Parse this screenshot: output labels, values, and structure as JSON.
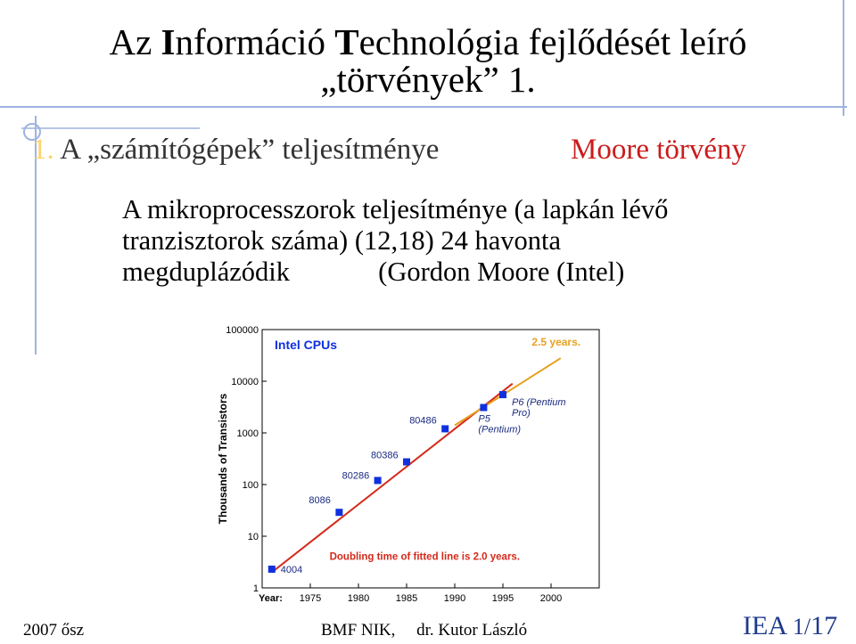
{
  "slide": {
    "title_line1_parts": [
      "Az ",
      "I",
      "nformáció ",
      "T",
      "echnológia fejlődését leíró"
    ],
    "title_line2": "„törvények” 1.",
    "bullet_num": "1.",
    "bullet_text": "A „számítógépek” teljesítménye",
    "moore_label": "Moore törvény",
    "body_lines": [
      "A mikroprocesszorok teljesítménye (a lapkán lévő",
      "tranzisztorok száma) (12,18) 24 havonta",
      "megduplázódik             (Gordon Moore (Intel)"
    ]
  },
  "footer": {
    "left": "2007 ősz",
    "middle": "BMF NIK,     dr. Kutor László",
    "right_label": "IEA",
    "right_page": "1/",
    "right_total": "17"
  },
  "colors": {
    "accent_blue": "#1f3a8a",
    "deco_line": "#9fb3df",
    "moore_red": "#cc1b1b",
    "fit_line": "#d42a1a",
    "trend_orange": "#e8a020",
    "chip_blue": "#1030e0"
  },
  "chart_data": {
    "type": "scatter",
    "title": "Intel CPUs",
    "ylabel": "Thousands of Transistors",
    "xlabel": "Year:",
    "y_scale": "log",
    "ylim": [
      1,
      100000
    ],
    "xlim": [
      1970,
      2005
    ],
    "y_ticks": [
      "100000",
      "10000",
      "1000",
      "100",
      "10",
      "1"
    ],
    "x_ticks": [
      "1975",
      "1980",
      "1985",
      "1990",
      "1995",
      "2000"
    ],
    "points": [
      {
        "label": "4004",
        "x": 1971,
        "y": 2.3
      },
      {
        "label": "8086",
        "x": 1978,
        "y": 29
      },
      {
        "label": "80286",
        "x": 1982,
        "y": 120
      },
      {
        "label": "80386",
        "x": 1985,
        "y": 275
      },
      {
        "label": "80486",
        "x": 1989,
        "y": 1200
      },
      {
        "label": "P5\n(Pentium)",
        "x": 1993,
        "y": 3100
      },
      {
        "label": "P6 (Pentium\n Pro)",
        "x": 1995,
        "y": 5500
      }
    ],
    "fit_line": {
      "x": [
        1971,
        1996
      ],
      "y": [
        2.0,
        9000
      ]
    },
    "trend_line": {
      "x": [
        1990,
        2001
      ],
      "y": [
        1400,
        28000
      ]
    },
    "annotations": [
      "2.5 years.",
      "Doubling time of fitted line is 2.0 years."
    ]
  }
}
